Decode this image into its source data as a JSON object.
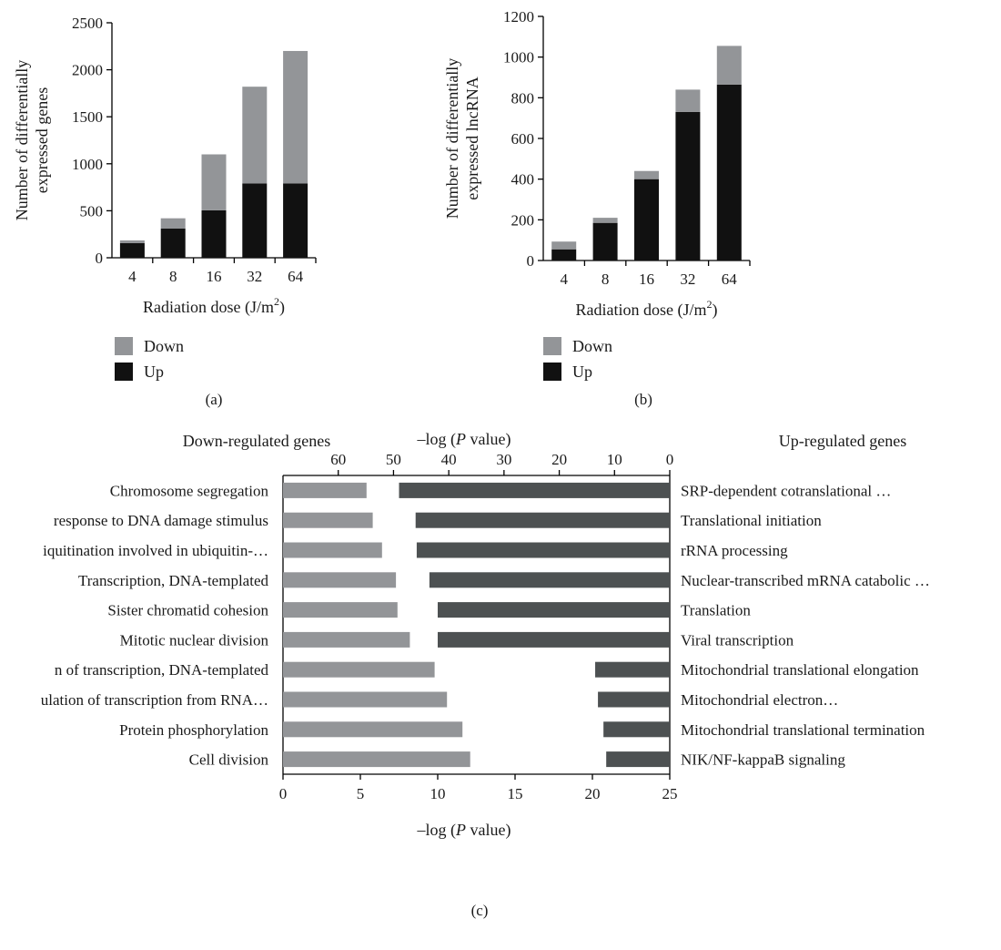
{
  "chart_data": [
    {
      "id": "a",
      "type": "bar",
      "stacked": true,
      "panel_label": "(a)",
      "categories": [
        "4",
        "8",
        "16",
        "32",
        "64"
      ],
      "series": [
        {
          "name": "Up",
          "color": "#111111",
          "values": [
            155,
            310,
            505,
            790,
            790
          ]
        },
        {
          "name": "Down",
          "color": "#939598",
          "values": [
            30,
            110,
            595,
            1030,
            1410
          ]
        }
      ],
      "ylabel_lines": [
        "Number of differentially",
        "expressed genes"
      ],
      "xlabel": "Radiation dose (J/m",
      "xlabel_sup": "2",
      "xlabel_tail": ")",
      "ylim": [
        0,
        2500
      ],
      "yticks": [
        "0",
        "500",
        "1000",
        "1500",
        "2000",
        "2500"
      ],
      "legend": [
        "Down",
        "Up"
      ],
      "legend_position": "bottom-left",
      "grid": false
    },
    {
      "id": "b",
      "type": "bar",
      "stacked": true,
      "panel_label": "(b)",
      "categories": [
        "4",
        "8",
        "16",
        "32",
        "64"
      ],
      "series": [
        {
          "name": "Up",
          "color": "#111111",
          "values": [
            55,
            185,
            400,
            730,
            865
          ]
        },
        {
          "name": "Down",
          "color": "#939598",
          "values": [
            38,
            25,
            40,
            110,
            190
          ]
        }
      ],
      "ylabel_lines": [
        "Number of differentially",
        "expressed lncRNA"
      ],
      "xlabel": "Radiation dose (J/m",
      "xlabel_sup": "2",
      "xlabel_tail": ")",
      "ylim": [
        0,
        1200
      ],
      "yticks": [
        "0",
        "200",
        "400",
        "600",
        "800",
        "1000",
        "1200"
      ],
      "legend": [
        "Down",
        "Up"
      ],
      "legend_position": "bottom-left",
      "grid": false
    },
    {
      "id": "c",
      "type": "bar",
      "orientation": "horizontal",
      "panel_label": "(c)",
      "left_title": "Down-regulated genes",
      "right_title": "Up-regulated genes",
      "bottom_axis_label": "–log (P value)",
      "top_axis_label": "–log (P value)",
      "bottom_ticks": [
        "0",
        "5",
        "10",
        "15",
        "20",
        "25"
      ],
      "bottom_xlim": [
        0,
        25
      ],
      "top_ticks": [
        "60",
        "50",
        "40",
        "30",
        "20",
        "10",
        "0"
      ],
      "top_xlim": [
        0,
        70
      ],
      "down_color": "#939598",
      "up_color": "#4d5152",
      "down_categories": [
        "Chromosome segregation",
        "response to DNA damage stimulus",
        "iquitination involved in ubiquitin-…",
        "Transcription, DNA-templated",
        "Sister chromatid cohesion",
        "Mitotic nuclear division",
        "n of transcription, DNA-templated",
        "ulation of transcription from RNA…",
        "Protein phosphorylation",
        "Cell division"
      ],
      "down_values": [
        5.4,
        5.8,
        6.4,
        7.3,
        7.4,
        8.2,
        9.8,
        10.6,
        11.6,
        12.1
      ],
      "up_categories": [
        "SRP-dependent cotranslational …",
        "Translational initiation",
        "rRNA processing",
        "Nuclear-transcribed mRNA catabolic …",
        "Translation",
        "Viral transcription",
        "Mitochondrial translational elongation",
        "Mitochondrial electron…",
        "Mitochondrial translational termination",
        "NIK/NF-kappaB signaling"
      ],
      "up_values": [
        49,
        46,
        45.8,
        43.5,
        42,
        42,
        13.5,
        13,
        12,
        11.5
      ]
    }
  ]
}
